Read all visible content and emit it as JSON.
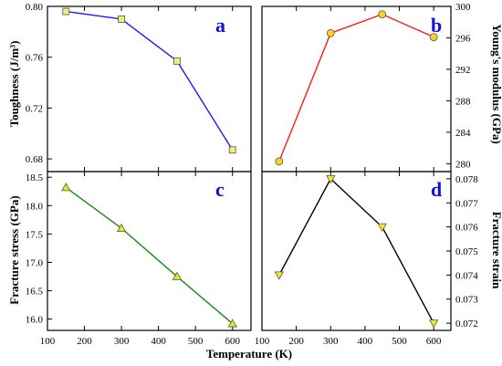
{
  "chart_data": [
    {
      "panel": "a",
      "type": "line",
      "x": [
        150,
        300,
        450,
        600
      ],
      "values": [
        0.796,
        0.79,
        0.757,
        0.687
      ],
      "ylabel": "Toughness (J/m³)",
      "ylim": [
        0.67,
        0.8
      ],
      "yticks": [
        "0.68",
        "0.72",
        "0.76",
        "0.80"
      ],
      "line_color": "#1a1aff",
      "marker": "square",
      "marker_color": "#f2ec7a",
      "y_axis_side": "left"
    },
    {
      "panel": "b",
      "type": "line",
      "x": [
        150,
        300,
        450,
        600
      ],
      "values": [
        280.3,
        296.6,
        299.0,
        296.1
      ],
      "ylabel": "Young's modulus (GPa)",
      "ylim": [
        279,
        300
      ],
      "yticks": [
        "280",
        "284",
        "288",
        "292",
        "296",
        "300"
      ],
      "line_color": "#ff1a1a",
      "marker": "circle",
      "marker_color": "#ffd21f",
      "y_axis_side": "right"
    },
    {
      "panel": "c",
      "type": "line",
      "x": [
        150,
        300,
        450,
        600
      ],
      "values": [
        18.32,
        17.6,
        16.75,
        15.92
      ],
      "ylabel": "Fracture stress (GPa)",
      "ylim": [
        15.8,
        18.6
      ],
      "yticks": [
        "16.0",
        "16.5",
        "17.0",
        "17.5",
        "18.0",
        "18.5"
      ],
      "line_color": "#1a8a1a",
      "marker": "triangle-up",
      "marker_color": "#d4f01a",
      "y_axis_side": "left"
    },
    {
      "panel": "d",
      "type": "line",
      "x": [
        150,
        300,
        450,
        600
      ],
      "values": [
        0.074,
        0.078,
        0.076,
        0.072
      ],
      "ylabel": "Fracture strain",
      "ylim": [
        0.0717,
        0.0783
      ],
      "yticks": [
        "0.072",
        "0.073",
        "0.074",
        "0.075",
        "0.076",
        "0.077",
        "0.078"
      ],
      "line_color": "#000000",
      "marker": "triangle-down",
      "marker_color": "#f2ec1a",
      "y_axis_side": "right"
    }
  ],
  "xlabel": "Temperature (K)",
  "xlim": [
    100,
    650
  ],
  "xticks": [
    "100",
    "200",
    "300",
    "400",
    "500",
    "600"
  ],
  "grid": false
}
